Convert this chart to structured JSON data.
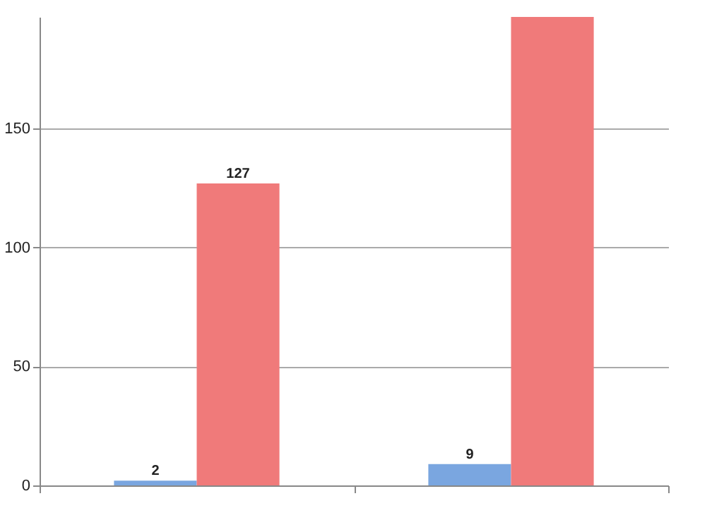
{
  "chart_data": {
    "type": "bar",
    "categories": [
      null,
      null
    ],
    "series": [
      {
        "color": "#7aa6e0",
        "values": [
          2,
          9
        ],
        "value_labels": [
          "2",
          "9"
        ]
      },
      {
        "color": "#f07a7a",
        "values": [
          127,
          197
        ],
        "value_labels": [
          "127",
          null
        ]
      }
    ],
    "ylim": [
      0,
      197
    ],
    "yticks": [
      0,
      50,
      100,
      150
    ],
    "grid": "y",
    "tick_labels": "y"
  }
}
